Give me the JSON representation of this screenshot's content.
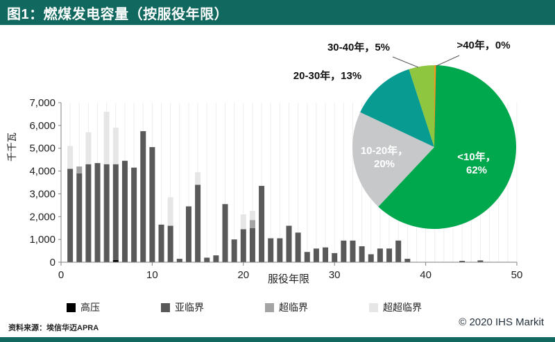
{
  "header": {
    "title": "图1：燃煤发电容量（按服役年限）"
  },
  "footer": {
    "source": "资料来源：埃信华迈APRA",
    "copyright": "© 2020 IHS Markit"
  },
  "colors": {
    "brand_teal": "#11685E",
    "bar_gaoya": "#000000",
    "bar_yalinjie": "#595959",
    "bar_chaolinjie": "#A3A3A3",
    "bar_chaochaolinjie": "#E6E6E6",
    "pie_lt10": "#00A84D",
    "pie_10_20": "#C7C8CA",
    "pie_20_30": "#089B92",
    "pie_30_40": "#8EC63F",
    "pie_gt40": "#F7941E"
  },
  "chart_data": [
    {
      "type": "bar",
      "stacked": true,
      "title": "",
      "xlabel": "服役年限",
      "ylabel": "千千瓦",
      "xlim": [
        0,
        50
      ],
      "ylim": [
        0,
        7000
      ],
      "ytick_step": 1000,
      "xticks": [
        0,
        10,
        20,
        30,
        40,
        50
      ],
      "grid": "vertical-light",
      "legend_position": "bottom",
      "categories": [
        1,
        2,
        3,
        4,
        5,
        6,
        7,
        8,
        9,
        10,
        11,
        12,
        13,
        14,
        15,
        16,
        17,
        18,
        19,
        20,
        21,
        22,
        23,
        24,
        25,
        26,
        27,
        28,
        29,
        30,
        31,
        32,
        33,
        34,
        35,
        36,
        37,
        38,
        39,
        40,
        41,
        42,
        43,
        44,
        45,
        46,
        47
      ],
      "series": [
        {
          "name": "高压",
          "color": "#000000",
          "values": [
            0,
            0,
            0,
            0,
            0,
            100,
            0,
            0,
            0,
            0,
            0,
            0,
            0,
            0,
            0,
            0,
            0,
            0,
            0,
            0,
            0,
            0,
            0,
            0,
            0,
            0,
            0,
            0,
            0,
            0,
            0,
            0,
            0,
            0,
            0,
            0,
            0,
            0,
            0,
            0,
            0,
            0,
            0,
            0,
            0,
            0,
            0
          ]
        },
        {
          "name": "亚临界",
          "color": "#595959",
          "values": [
            4100,
            3900,
            4300,
            4350,
            4300,
            4200,
            4450,
            4150,
            5750,
            5050,
            1650,
            1600,
            150,
            2450,
            3400,
            200,
            300,
            2550,
            1000,
            1450,
            1500,
            3350,
            1050,
            1050,
            1600,
            1300,
            450,
            600,
            650,
            400,
            950,
            950,
            700,
            350,
            600,
            600,
            950,
            150,
            0,
            0,
            0,
            0,
            0,
            60,
            0,
            80,
            0
          ]
        },
        {
          "name": "超临界",
          "color": "#A3A3A3",
          "values": [
            0,
            300,
            0,
            0,
            0,
            0,
            0,
            0,
            0,
            0,
            0,
            0,
            0,
            0,
            0,
            0,
            0,
            0,
            0,
            0,
            350,
            0,
            0,
            0,
            0,
            0,
            0,
            0,
            0,
            0,
            0,
            0,
            0,
            0,
            0,
            0,
            0,
            0,
            0,
            0,
            0,
            0,
            0,
            0,
            0,
            0,
            0
          ]
        },
        {
          "name": "超超临界",
          "color": "#E6E6E6",
          "values": [
            1000,
            0,
            1400,
            0,
            2300,
            1600,
            0,
            0,
            0,
            0,
            0,
            1250,
            0,
            0,
            550,
            0,
            0,
            0,
            0,
            650,
            400,
            0,
            0,
            0,
            0,
            0,
            0,
            0,
            0,
            0,
            0,
            0,
            0,
            0,
            0,
            0,
            0,
            0,
            0,
            0,
            0,
            0,
            0,
            0,
            0,
            0,
            0
          ]
        }
      ]
    },
    {
      "type": "pie",
      "start_angle_deg": 0,
      "clockwise": true,
      "slices": [
        {
          "label": "<10年",
          "pct": 62,
          "color": "#00A84D",
          "display": "<10年，62%",
          "label_inside": true
        },
        {
          "label": "10-20年",
          "pct": 20,
          "color": "#C7C8CA",
          "display": "10-20年，20%",
          "label_inside": true
        },
        {
          "label": "20-30年",
          "pct": 13,
          "color": "#089B92",
          "display": "20-30年，13%",
          "label_inside": false
        },
        {
          "label": "30-40年",
          "pct": 5,
          "color": "#8EC63F",
          "display": "30-40年，5%",
          "label_inside": false
        },
        {
          "label": ">40年",
          "pct": 0,
          "color": "#F7941E",
          "display": ">40年，0%",
          "label_inside": false
        }
      ]
    }
  ]
}
